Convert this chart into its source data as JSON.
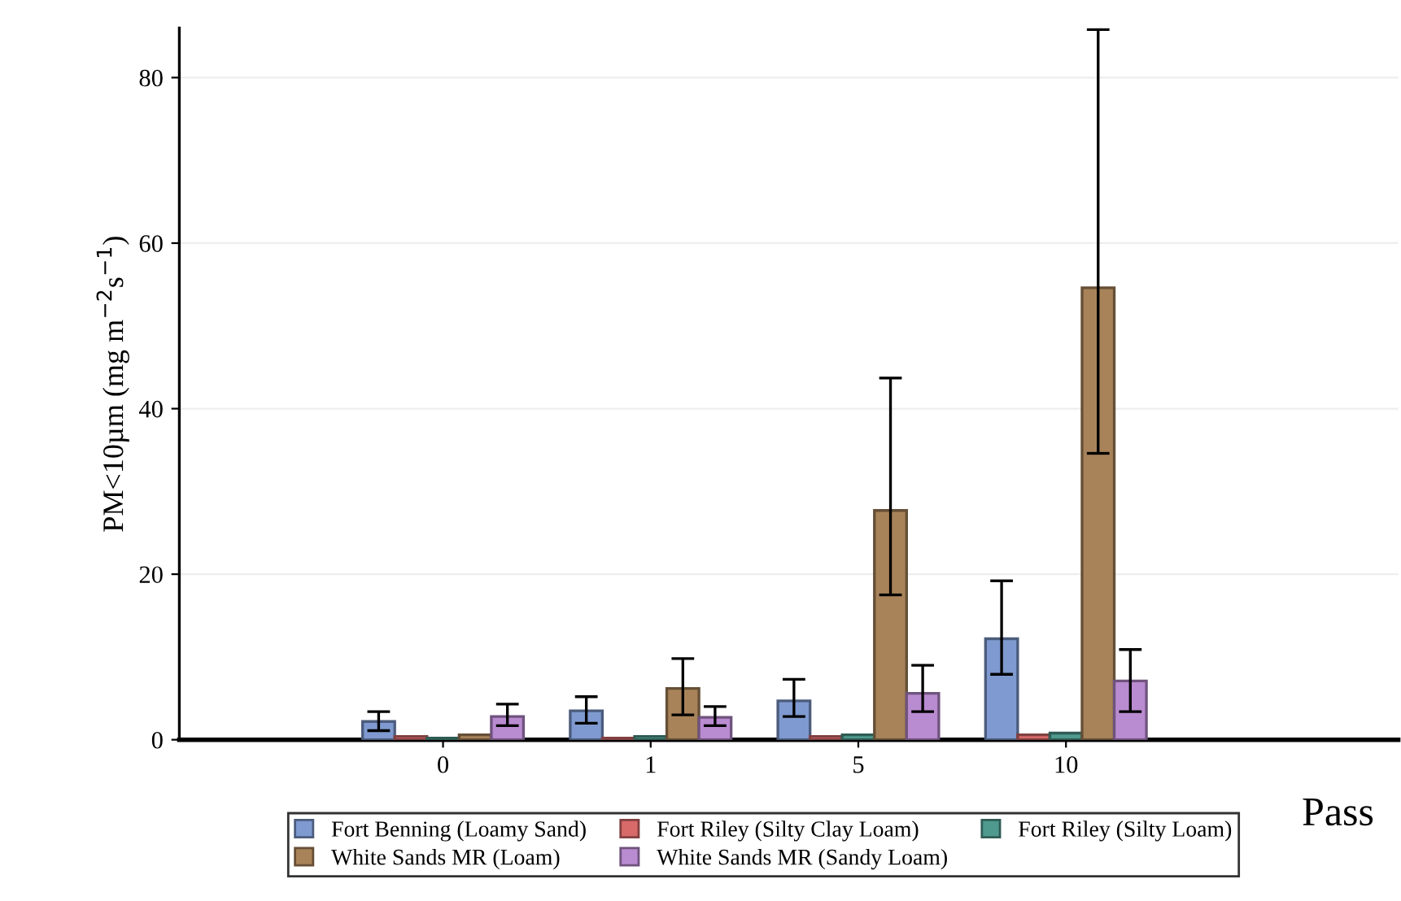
{
  "chart_data": {
    "type": "bar",
    "xlabel": "Pass",
    "ylabel": "PM<10µm (mg m$^{−2}$s$^{−1}$)",
    "categories": [
      "0",
      "1",
      "5",
      "10"
    ],
    "ylim": [
      0,
      86
    ],
    "yticks": [
      0,
      20,
      40,
      60,
      80
    ],
    "grid": "y",
    "legend": "bottom",
    "series": [
      {
        "name": "Fort Benning (Loamy Sand)",
        "color": "#7f9ad0",
        "values": [
          2.2,
          3.5,
          4.7,
          12.2
        ],
        "errors": [
          [
            1.1,
            3.4
          ],
          [
            2.0,
            5.2
          ],
          [
            2.8,
            7.3
          ],
          [
            7.9,
            19.2
          ]
        ]
      },
      {
        "name": "Fort Riley (Silty Clay Loam)",
        "color": "#d86a6a",
        "values": [
          0.4,
          0.2,
          0.4,
          0.6
        ]
      },
      {
        "name": "Fort Riley (Silty Loam)",
        "color": "#4f9a8e",
        "values": [
          0.2,
          0.4,
          0.6,
          0.8
        ]
      },
      {
        "name": "White Sands MR (Loam)",
        "color": "#a8835a",
        "values": [
          0.6,
          6.2,
          27.7,
          54.6
        ],
        "errors": [
          null,
          [
            3.0,
            9.8
          ],
          [
            17.5,
            43.7
          ],
          [
            34.6,
            85.8
          ]
        ]
      },
      {
        "name": "White Sands MR (Sandy Loam)",
        "color": "#b98bd0",
        "values": [
          2.8,
          2.7,
          5.6,
          7.1
        ],
        "errors": [
          [
            1.7,
            4.3
          ],
          [
            1.7,
            4.0
          ],
          [
            3.4,
            9.0
          ],
          [
            3.4,
            10.9
          ]
        ]
      }
    ]
  }
}
